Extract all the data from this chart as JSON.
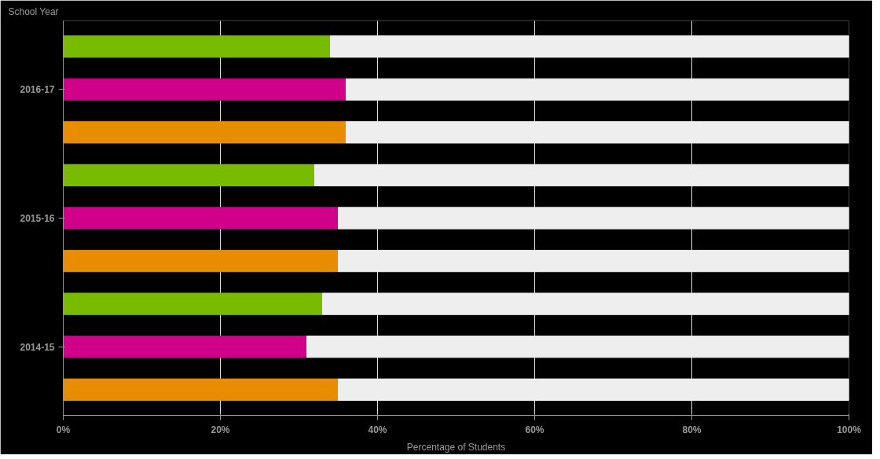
{
  "chart_data": {
    "type": "bar",
    "orientation": "horizontal",
    "stacked": true,
    "ylabel": "School Year",
    "xlabel": "Percentage of Students",
    "categories": [
      null,
      "2016-17",
      null,
      null,
      "2015-16",
      null,
      null,
      "2014-15",
      null
    ],
    "series": [
      {
        "colors": [
          "#78bb00",
          "#d0008a",
          "#e88c00",
          "#78bb00",
          "#d0008a",
          "#e88c00",
          "#78bb00",
          "#d0008a",
          "#e88c00"
        ],
        "values": [
          34,
          36,
          36,
          32,
          35,
          35,
          33,
          31,
          35
        ]
      },
      {
        "color": "#eeeeee",
        "values": [
          66,
          64,
          64,
          68,
          65,
          65,
          67,
          69,
          65
        ]
      }
    ],
    "xlim": [
      0,
      100
    ],
    "xticks": [
      {
        "value": 0,
        "label": "0%"
      },
      {
        "value": 20,
        "label": "20%"
      },
      {
        "value": 40,
        "label": "40%"
      },
      {
        "value": 60,
        "label": "60%"
      },
      {
        "value": 80,
        "label": "80%"
      },
      {
        "value": 100,
        "label": "100%"
      }
    ],
    "grid": "x"
  }
}
